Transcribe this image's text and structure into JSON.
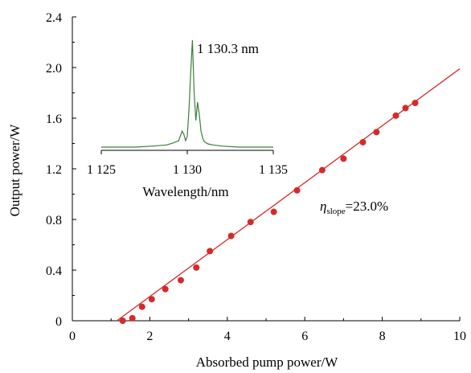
{
  "chart_data": [
    {
      "type": "scatter",
      "xlabel": "Absorbed pump power/W",
      "ylabel": "Output power/W",
      "xlim": [
        0,
        10
      ],
      "ylim": [
        0,
        2.4
      ],
      "xticks": [
        0,
        2,
        4,
        6,
        8,
        10
      ],
      "yticks": [
        0,
        0.4,
        0.8,
        1.2,
        1.6,
        2.0,
        2.4
      ],
      "xtick_labels": [
        "0",
        "2",
        "4",
        "6",
        "8",
        "10"
      ],
      "ytick_labels": [
        "0",
        "0.4",
        "0.8",
        "1.2",
        "1.6",
        "2.0",
        "2.4"
      ],
      "grid": false,
      "colors": {
        "points": "#d62a2a",
        "fit": "#d62a2a",
        "axes": "#000000"
      },
      "series": [
        {
          "x": [
            1.3,
            1.55,
            1.8,
            2.05,
            2.4,
            2.8,
            3.2,
            3.55,
            4.1,
            4.6,
            5.2,
            5.8,
            6.45,
            7.0,
            7.5,
            7.85,
            8.35,
            8.6,
            8.85
          ],
          "y": [
            0.0,
            0.02,
            0.11,
            0.17,
            0.25,
            0.32,
            0.42,
            0.55,
            0.67,
            0.78,
            0.86,
            1.03,
            1.19,
            1.28,
            1.41,
            1.49,
            1.62,
            1.68,
            1.72
          ]
        }
      ],
      "fit_line": {
        "x": [
          1.15,
          10.0
        ],
        "y": [
          0.0,
          1.99
        ]
      },
      "annotation": {
        "symbol": "η",
        "subscript": "slope",
        "text": "=23.0%"
      }
    },
    {
      "type": "line",
      "inset": true,
      "xlabel": "Wavelength/nm",
      "xlim": [
        1125,
        1135
      ],
      "xticks": [
        1125,
        1130,
        1135
      ],
      "xtick_labels": [
        "1 125",
        "1 130",
        "1 135"
      ],
      "colors": {
        "line": "#3d7d3d"
      },
      "peak_label": "1 130.3 nm",
      "series": [
        {
          "x": [
            1125.0,
            1126.0,
            1127.0,
            1128.0,
            1128.8,
            1129.2,
            1129.5,
            1129.7,
            1129.8,
            1129.9,
            1130.0,
            1130.1,
            1130.2,
            1130.3,
            1130.4,
            1130.5,
            1130.6,
            1130.7,
            1130.8,
            1130.9,
            1131.0,
            1131.2,
            1131.5,
            1132.0,
            1133.0,
            1134.0,
            1135.0
          ],
          "y": [
            0.0,
            0.0,
            0.0,
            0.01,
            0.02,
            0.04,
            0.06,
            0.15,
            0.12,
            0.06,
            0.1,
            0.35,
            0.7,
            1.0,
            0.5,
            0.25,
            0.42,
            0.3,
            0.15,
            0.08,
            0.05,
            0.03,
            0.02,
            0.01,
            0.0,
            0.0,
            0.0
          ]
        }
      ]
    }
  ]
}
